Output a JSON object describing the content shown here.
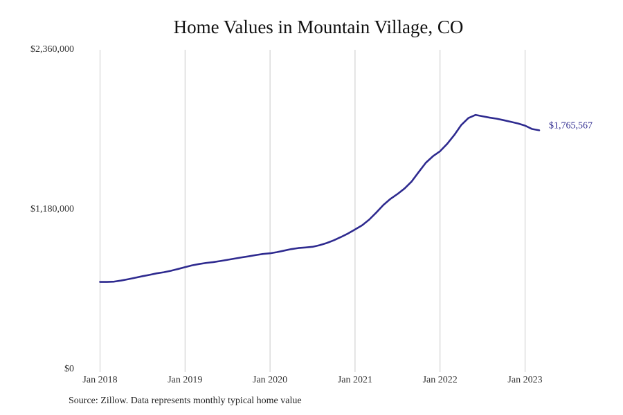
{
  "chart_data": {
    "type": "line",
    "title": "Home Values in Mountain Village, CO",
    "xlabel": "",
    "ylabel": "",
    "source_note": "Source: Zillow. Data represents monthly typical home value",
    "x_tick_labels": [
      "Jan 2018",
      "Jan 2019",
      "Jan 2020",
      "Jan 2021",
      "Jan 2022",
      "Jan 2023"
    ],
    "y_tick_labels": [
      "$0",
      "$1,180,000",
      "$2,360,000"
    ],
    "y_tick_values": [
      0,
      1180000,
      2360000
    ],
    "ylim": [
      0,
      2360000
    ],
    "xlim": [
      "2018-01",
      "2023-03"
    ],
    "vertical_grid": true,
    "horizontal_grid": false,
    "legend": "none",
    "line_color": "#2e2a8f",
    "grid_color": "#c8c8c8",
    "end_label": "$1,765,567",
    "series": [
      {
        "x": [
          "2018-01",
          "2018-02",
          "2018-03",
          "2018-04",
          "2018-05",
          "2018-06",
          "2018-07",
          "2018-08",
          "2018-09",
          "2018-10",
          "2018-11",
          "2018-12",
          "2019-01",
          "2019-02",
          "2019-03",
          "2019-04",
          "2019-05",
          "2019-06",
          "2019-07",
          "2019-08",
          "2019-09",
          "2019-10",
          "2019-11",
          "2019-12",
          "2020-01",
          "2020-02",
          "2020-03",
          "2020-04",
          "2020-05",
          "2020-06",
          "2020-07",
          "2020-08",
          "2020-09",
          "2020-10",
          "2020-11",
          "2020-12",
          "2021-01",
          "2021-02",
          "2021-03",
          "2021-04",
          "2021-05",
          "2021-06",
          "2021-07",
          "2021-08",
          "2021-09",
          "2021-10",
          "2021-11",
          "2021-12",
          "2022-01",
          "2022-02",
          "2022-03",
          "2022-04",
          "2022-05",
          "2022-06",
          "2022-07",
          "2022-08",
          "2022-09",
          "2022-10",
          "2022-11",
          "2022-12",
          "2023-01",
          "2023-02",
          "2023-03"
        ],
        "values": [
          646000,
          646000,
          648000,
          656000,
          666000,
          677000,
          688000,
          698000,
          709000,
          717000,
          728000,
          741000,
          755000,
          768000,
          778000,
          786000,
          792000,
          800000,
          809000,
          818000,
          827000,
          835000,
          844000,
          852000,
          857000,
          866000,
          877000,
          888000,
          896000,
          900000,
          905000,
          917000,
          933000,
          953000,
          977000,
          1003000,
          1033000,
          1064000,
          1106000,
          1158000,
          1214000,
          1259000,
          1295000,
          1336000,
          1388000,
          1458000,
          1526000,
          1574000,
          1611000,
          1665000,
          1730000,
          1805000,
          1856000,
          1879000,
          1869000,
          1859000,
          1851000,
          1840000,
          1828000,
          1816000,
          1800000,
          1775000,
          1765567
        ]
      }
    ]
  }
}
